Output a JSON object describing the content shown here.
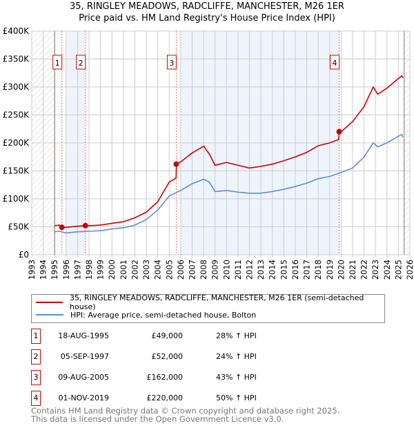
{
  "title": "35, RINGLEY MEADOWS, RADCLIFFE, MANCHESTER, M26 1ER",
  "subtitle": "Price paid vs. HM Land Registry's House Price Index (HPI)",
  "colors": {
    "property": "#cc0000",
    "hpi": "#5b8fd4",
    "band": "#eef3fd"
  },
  "chart_data": {
    "type": "line",
    "title": "35, RINGLEY MEADOWS, RADCLIFFE, MANCHESTER, M26 1ER",
    "subtitle": "Price paid vs. HM Land Registry's House Price Index (HPI)",
    "xlim": [
      1993,
      2026
    ],
    "ylim": [
      0,
      400000
    ],
    "xticks": [
      "1993",
      "1994",
      "1995",
      "1996",
      "1997",
      "1998",
      "1999",
      "2000",
      "2001",
      "2002",
      "2003",
      "2004",
      "2005",
      "2006",
      "2007",
      "2008",
      "2009",
      "2010",
      "2011",
      "2012",
      "2013",
      "2014",
      "2015",
      "2016",
      "2017",
      "2018",
      "2019",
      "2020",
      "2021",
      "2022",
      "2023",
      "2024",
      "2025",
      "2026"
    ],
    "yticks": [
      {
        "v": 0,
        "label": "£0"
      },
      {
        "v": 50000,
        "label": "£50K"
      },
      {
        "v": 100000,
        "label": "£100K"
      },
      {
        "v": 150000,
        "label": "£150K"
      },
      {
        "v": 200000,
        "label": "£200K"
      },
      {
        "v": 250000,
        "label": "£250K"
      },
      {
        "v": 300000,
        "label": "£300K"
      },
      {
        "v": 350000,
        "label": "£350K"
      },
      {
        "v": 400000,
        "label": "£400K"
      }
    ],
    "grid": true,
    "hatched_ranges": [
      [
        1993,
        1995
      ],
      [
        2025.5,
        2026
      ]
    ],
    "shaded_ranges": [
      [
        1996,
        1997.68
      ],
      [
        2006,
        2019.83
      ]
    ],
    "series": [
      {
        "name": "35, RINGLEY MEADOWS, RADCLIFFE, MANCHESTER, M26 1ER (semi-detached house)",
        "color": "#cc0000",
        "x": [
          1995,
          1995.4,
          1995.63,
          1996,
          1997,
          1997.68,
          1998,
          1999,
          2000,
          2001,
          2002,
          2003,
          2004,
          2005,
          2005.6,
          2005.63,
          2006,
          2007,
          2008,
          2008.5,
          2009,
          2010,
          2011,
          2012,
          2013,
          2014,
          2015,
          2016,
          2017,
          2018,
          2019,
          2019.8,
          2019.83,
          2020,
          2021,
          2022,
          2022.8,
          2023.2,
          2024,
          2025,
          2025.3,
          2025.4
        ],
        "y": [
          52000,
          53000,
          49000,
          49000,
          51000,
          52000,
          52000,
          53000,
          56000,
          59000,
          66000,
          76000,
          95000,
          130000,
          137000,
          162000,
          166000,
          182000,
          194000,
          180000,
          160000,
          165000,
          160000,
          155000,
          158000,
          162000,
          168000,
          175000,
          183000,
          195000,
          200000,
          206000,
          220000,
          220000,
          238000,
          265000,
          300000,
          287000,
          298000,
          315000,
          320000,
          316000
        ]
      },
      {
        "name": "HPI: Average price, semi-detached house, Bolton",
        "color": "#5b8fd4",
        "x": [
          1995,
          1995.4,
          1996,
          1997,
          1998,
          1999,
          2000,
          2001,
          2002,
          2003,
          2004,
          2005,
          2006,
          2007,
          2008,
          2008.5,
          2009,
          2010,
          2011,
          2012,
          2013,
          2014,
          2015,
          2016,
          2017,
          2018,
          2019,
          2020,
          2021,
          2022,
          2022.8,
          2023.2,
          2024,
          2025,
          2025.3,
          2025.4
        ],
        "y": [
          41000,
          42000,
          39000,
          41000,
          42000,
          43000,
          46000,
          48000,
          53000,
          63000,
          80000,
          105000,
          115000,
          127000,
          135000,
          130000,
          113000,
          115000,
          112000,
          110000,
          110000,
          113000,
          117000,
          122000,
          128000,
          136000,
          140000,
          147000,
          155000,
          175000,
          200000,
          193000,
          200000,
          212000,
          215000,
          210000
        ]
      }
    ],
    "sales": [
      {
        "n": "1",
        "x": 1995.63,
        "y": 49000
      },
      {
        "n": "2",
        "x": 1997.68,
        "y": 52000
      },
      {
        "n": "3",
        "x": 2005.61,
        "y": 162000
      },
      {
        "n": "4",
        "x": 2019.83,
        "y": 220000
      }
    ]
  },
  "legend": {
    "property": "35, RINGLEY MEADOWS, RADCLIFFE, MANCHESTER, M26 1ER (semi-detached house)",
    "hpi": "HPI: Average price, semi-detached house, Bolton"
  },
  "sales_table": [
    {
      "n": "1",
      "date": "18-AUG-1995",
      "price": "£49,000",
      "hpi": "28% ↑ HPI"
    },
    {
      "n": "2",
      "date": "05-SEP-1997",
      "price": "£52,000",
      "hpi": "24% ↑ HPI"
    },
    {
      "n": "3",
      "date": "09-AUG-2005",
      "price": "£162,000",
      "hpi": "43% ↑ HPI"
    },
    {
      "n": "4",
      "date": "01-NOV-2019",
      "price": "£220,000",
      "hpi": "50% ↑ HPI"
    }
  ],
  "footer": [
    "Contains HM Land Registry data © Crown copyright and database right 2025.",
    "This data is licensed under the Open Government Licence v3.0."
  ]
}
